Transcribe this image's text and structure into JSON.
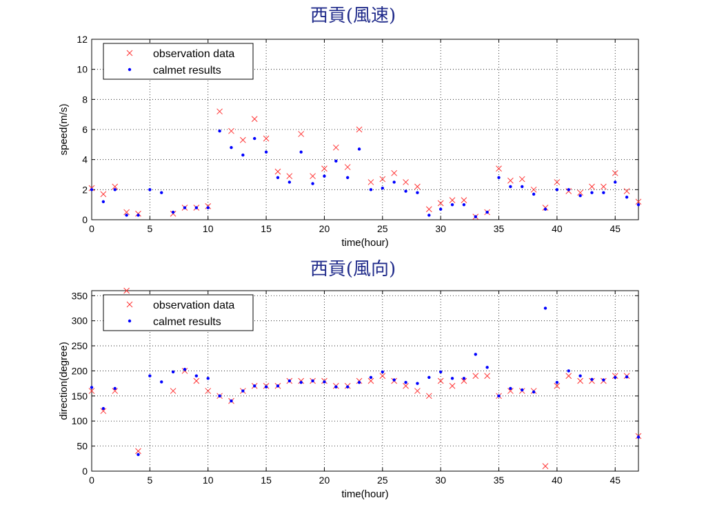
{
  "chart_data": [
    {
      "type": "scatter",
      "title": "西貢(風速)",
      "xlabel": "time(hour)",
      "ylabel": "speed(m/s)",
      "xlim": [
        0,
        47
      ],
      "ylim": [
        0,
        12
      ],
      "xticks": [
        0,
        5,
        10,
        15,
        20,
        25,
        30,
        35,
        40,
        45
      ],
      "yticks": [
        0,
        2,
        4,
        6,
        8,
        10,
        12
      ],
      "grid": true,
      "legend": "top-left",
      "series": [
        {
          "name": "observation data",
          "marker": "x",
          "color": "#ff3333",
          "points": [
            [
              0,
              2.1
            ],
            [
              1,
              1.7
            ],
            [
              2,
              2.2
            ],
            [
              3,
              0.5
            ],
            [
              4,
              0.4
            ],
            [
              7,
              0.4
            ],
            [
              8,
              0.8
            ],
            [
              9,
              0.8
            ],
            [
              10,
              0.9
            ],
            [
              11,
              7.2
            ],
            [
              12,
              5.9
            ],
            [
              13,
              5.3
            ],
            [
              14,
              6.7
            ],
            [
              15,
              5.4
            ],
            [
              16,
              3.2
            ],
            [
              17,
              2.9
            ],
            [
              18,
              5.7
            ],
            [
              19,
              2.9
            ],
            [
              20,
              3.4
            ],
            [
              21,
              4.8
            ],
            [
              22,
              3.5
            ],
            [
              23,
              6.0
            ],
            [
              24,
              2.5
            ],
            [
              25,
              2.7
            ],
            [
              26,
              3.1
            ],
            [
              27,
              2.5
            ],
            [
              28,
              2.2
            ],
            [
              29,
              0.7
            ],
            [
              30,
              1.1
            ],
            [
              31,
              1.3
            ],
            [
              32,
              1.3
            ],
            [
              33,
              0.2
            ],
            [
              34,
              0.5
            ],
            [
              35,
              3.4
            ],
            [
              36,
              2.6
            ],
            [
              37,
              2.7
            ],
            [
              38,
              2.0
            ],
            [
              39,
              0.8
            ],
            [
              40,
              2.5
            ],
            [
              41,
              1.9
            ],
            [
              42,
              1.8
            ],
            [
              43,
              2.2
            ],
            [
              44,
              2.2
            ],
            [
              45,
              3.1
            ],
            [
              46,
              1.9
            ],
            [
              47,
              1.2
            ]
          ]
        },
        {
          "name": "calmet results",
          "marker": "dot",
          "color": "#0000ff",
          "points": [
            [
              0,
              2.0
            ],
            [
              1,
              1.2
            ],
            [
              2,
              2.0
            ],
            [
              3,
              0.3
            ],
            [
              4,
              0.3
            ],
            [
              5,
              2.0
            ],
            [
              6,
              1.8
            ],
            [
              7,
              0.5
            ],
            [
              8,
              0.8
            ],
            [
              9,
              0.8
            ],
            [
              10,
              0.8
            ],
            [
              11,
              5.9
            ],
            [
              12,
              4.8
            ],
            [
              13,
              4.3
            ],
            [
              14,
              5.4
            ],
            [
              15,
              4.5
            ],
            [
              16,
              2.8
            ],
            [
              17,
              2.5
            ],
            [
              18,
              4.5
            ],
            [
              19,
              2.4
            ],
            [
              20,
              2.9
            ],
            [
              21,
              3.9
            ],
            [
              22,
              2.8
            ],
            [
              23,
              4.7
            ],
            [
              24,
              2.0
            ],
            [
              25,
              2.1
            ],
            [
              26,
              2.5
            ],
            [
              27,
              1.9
            ],
            [
              28,
              1.8
            ],
            [
              29,
              0.3
            ],
            [
              30,
              0.7
            ],
            [
              31,
              1.0
            ],
            [
              32,
              1.0
            ],
            [
              33,
              0.2
            ],
            [
              34,
              0.5
            ],
            [
              35,
              2.8
            ],
            [
              36,
              2.2
            ],
            [
              37,
              2.2
            ],
            [
              38,
              1.7
            ],
            [
              39,
              0.7
            ],
            [
              40,
              2.0
            ],
            [
              41,
              2.0
            ],
            [
              42,
              1.6
            ],
            [
              43,
              1.8
            ],
            [
              44,
              1.8
            ],
            [
              45,
              2.5
            ],
            [
              46,
              1.5
            ],
            [
              47,
              1.0
            ]
          ]
        }
      ]
    },
    {
      "type": "scatter",
      "title": "西貢(風向)",
      "xlabel": "time(hour)",
      "ylabel": "direction(degree)",
      "xlim": [
        0,
        47
      ],
      "ylim": [
        0,
        360
      ],
      "xticks": [
        0,
        5,
        10,
        15,
        20,
        25,
        30,
        35,
        40,
        45
      ],
      "yticks": [
        0,
        50,
        100,
        150,
        200,
        250,
        300,
        350
      ],
      "grid": true,
      "legend": "top-left",
      "series": [
        {
          "name": "observation data",
          "marker": "x",
          "color": "#ff3333",
          "points": [
            [
              0,
              160
            ],
            [
              1,
              120
            ],
            [
              2,
              160
            ],
            [
              3,
              360
            ],
            [
              4,
              40
            ],
            [
              7,
              160
            ],
            [
              8,
              200
            ],
            [
              9,
              180
            ],
            [
              10,
              160
            ],
            [
              11,
              150
            ],
            [
              12,
              140
            ],
            [
              13,
              160
            ],
            [
              14,
              170
            ],
            [
              15,
              170
            ],
            [
              16,
              170
            ],
            [
              17,
              180
            ],
            [
              18,
              180
            ],
            [
              19,
              180
            ],
            [
              20,
              180
            ],
            [
              21,
              170
            ],
            [
              22,
              170
            ],
            [
              23,
              180
            ],
            [
              24,
              180
            ],
            [
              25,
              190
            ],
            [
              26,
              180
            ],
            [
              27,
              170
            ],
            [
              28,
              160
            ],
            [
              29,
              150
            ],
            [
              30,
              180
            ],
            [
              31,
              170
            ],
            [
              32,
              180
            ],
            [
              33,
              190
            ],
            [
              34,
              190
            ],
            [
              35,
              150
            ],
            [
              36,
              160
            ],
            [
              37,
              160
            ],
            [
              38,
              160
            ],
            [
              39,
              10
            ],
            [
              40,
              170
            ],
            [
              41,
              190
            ],
            [
              42,
              180
            ],
            [
              43,
              180
            ],
            [
              44,
              180
            ],
            [
              45,
              190
            ],
            [
              46,
              190
            ],
            [
              47,
              70
            ]
          ]
        },
        {
          "name": "calmet results",
          "marker": "dot",
          "color": "#0000ff",
          "points": [
            [
              0,
              167
            ],
            [
              1,
              125
            ],
            [
              2,
              165
            ],
            [
              4,
              33
            ],
            [
              5,
              190
            ],
            [
              6,
              178
            ],
            [
              7,
              198
            ],
            [
              8,
              203
            ],
            [
              9,
              190
            ],
            [
              10,
              185
            ],
            [
              11,
              150
            ],
            [
              12,
              140
            ],
            [
              13,
              160
            ],
            [
              14,
              170
            ],
            [
              15,
              168
            ],
            [
              16,
              170
            ],
            [
              17,
              180
            ],
            [
              18,
              177
            ],
            [
              19,
              180
            ],
            [
              20,
              178
            ],
            [
              21,
              168
            ],
            [
              22,
              168
            ],
            [
              23,
              177
            ],
            [
              24,
              187
            ],
            [
              25,
              198
            ],
            [
              26,
              182
            ],
            [
              27,
              177
            ],
            [
              28,
              175
            ],
            [
              29,
              187
            ],
            [
              30,
              198
            ],
            [
              31,
              185
            ],
            [
              32,
              185
            ],
            [
              33,
              233
            ],
            [
              34,
              207
            ],
            [
              35,
              150
            ],
            [
              36,
              165
            ],
            [
              37,
              162
            ],
            [
              38,
              158
            ],
            [
              39,
              325
            ],
            [
              40,
              177
            ],
            [
              41,
              200
            ],
            [
              42,
              190
            ],
            [
              43,
              183
            ],
            [
              44,
              182
            ],
            [
              45,
              187
            ],
            [
              46,
              188
            ],
            [
              47,
              68
            ]
          ]
        }
      ]
    }
  ]
}
